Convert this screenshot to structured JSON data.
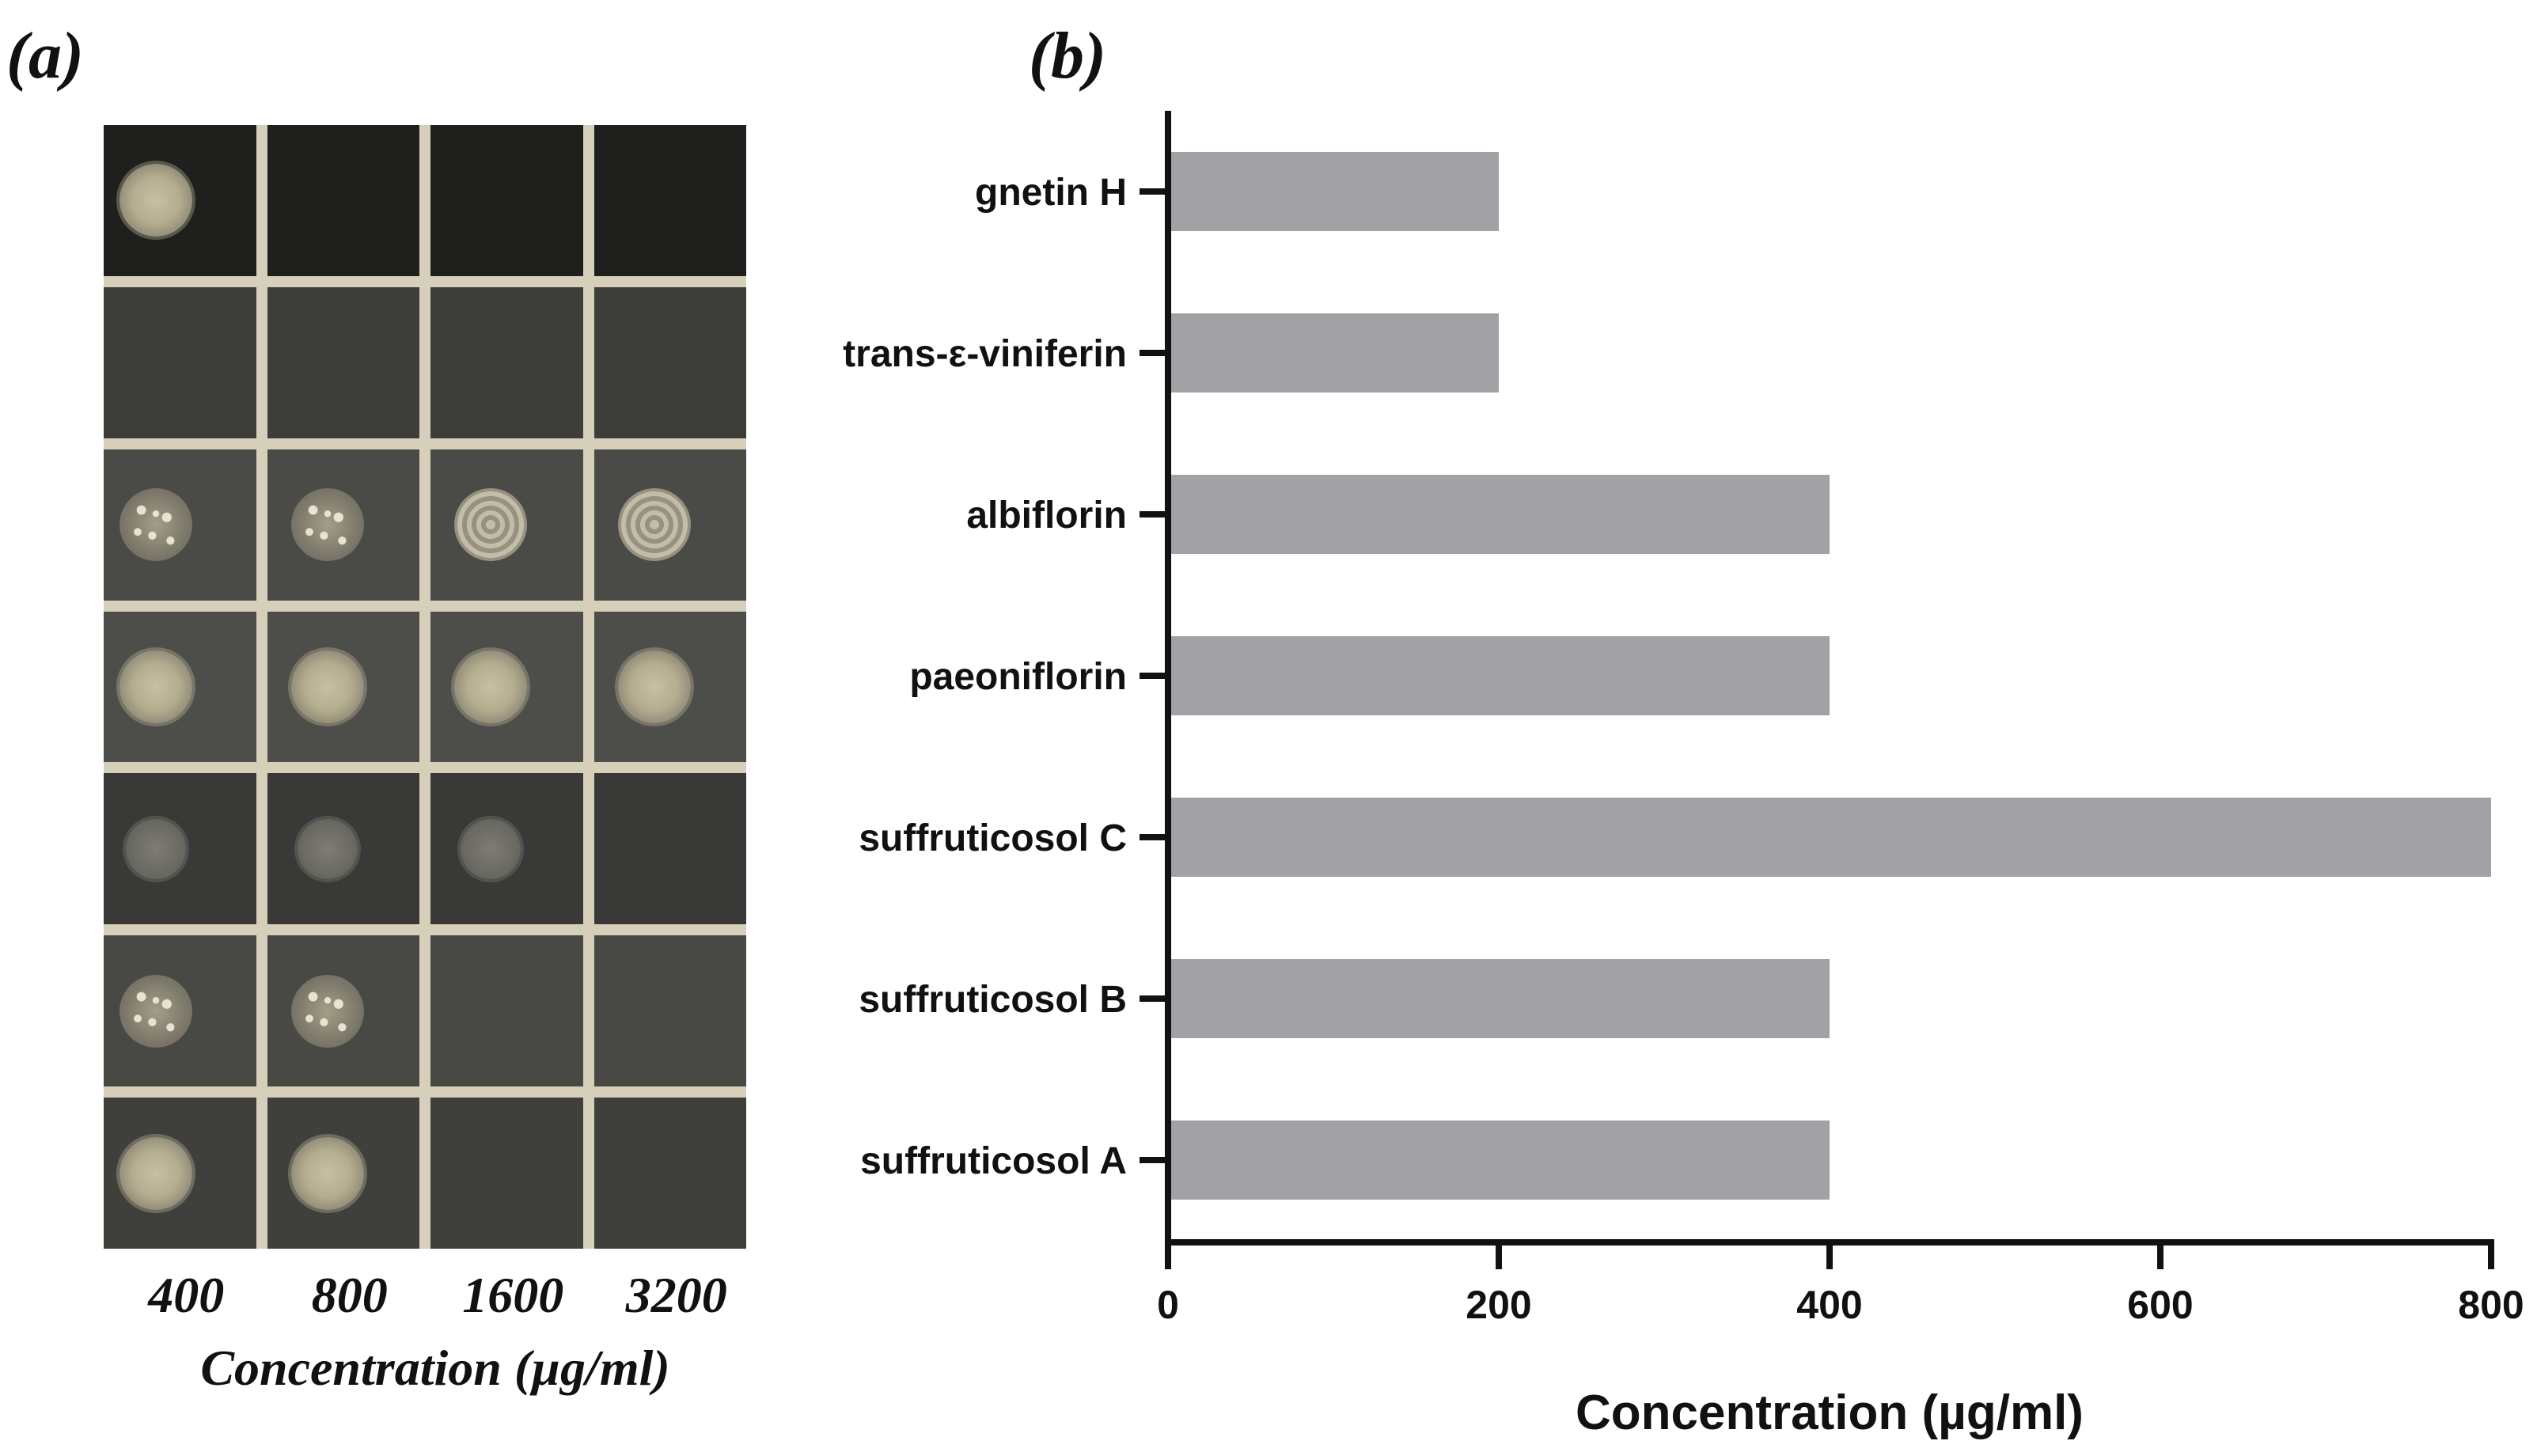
{
  "panel_a": {
    "label": "(a)",
    "x_ticks": [
      "400",
      "800",
      "1600",
      "3200"
    ],
    "x_title": "Concentration (µg/ml)",
    "grid": [
      [
        "smooth",
        "none",
        "none",
        "none"
      ],
      [
        "none",
        "none",
        "none",
        "none"
      ],
      [
        "wrinkled",
        "wrinkled",
        "webbed",
        "webbed"
      ],
      [
        "smooth",
        "smooth",
        "smooth",
        "smooth"
      ],
      [
        "faint",
        "faint",
        "faint",
        "none"
      ],
      [
        "wrinkled",
        "wrinkled",
        "none",
        "none"
      ],
      [
        "smooth",
        "smooth",
        "none",
        "none"
      ]
    ]
  },
  "panel_b": {
    "label": "(b)"
  },
  "chart_data": {
    "type": "bar",
    "orientation": "horizontal",
    "categories": [
      "gnetin H",
      "trans-ε-viniferin",
      "albiflorin",
      "paeoniflorin",
      "suffruticosol C",
      "suffruticosol B",
      "suffruticosol A"
    ],
    "values": [
      200,
      200,
      400,
      400,
      800,
      400,
      400
    ],
    "xlabel": "Concentration (µg/ml)",
    "ylabel": "",
    "xlim": [
      0,
      800
    ],
    "x_ticks": [
      0,
      200,
      400,
      600,
      800
    ],
    "bar_color": "#a2a2a6",
    "grid": false
  }
}
